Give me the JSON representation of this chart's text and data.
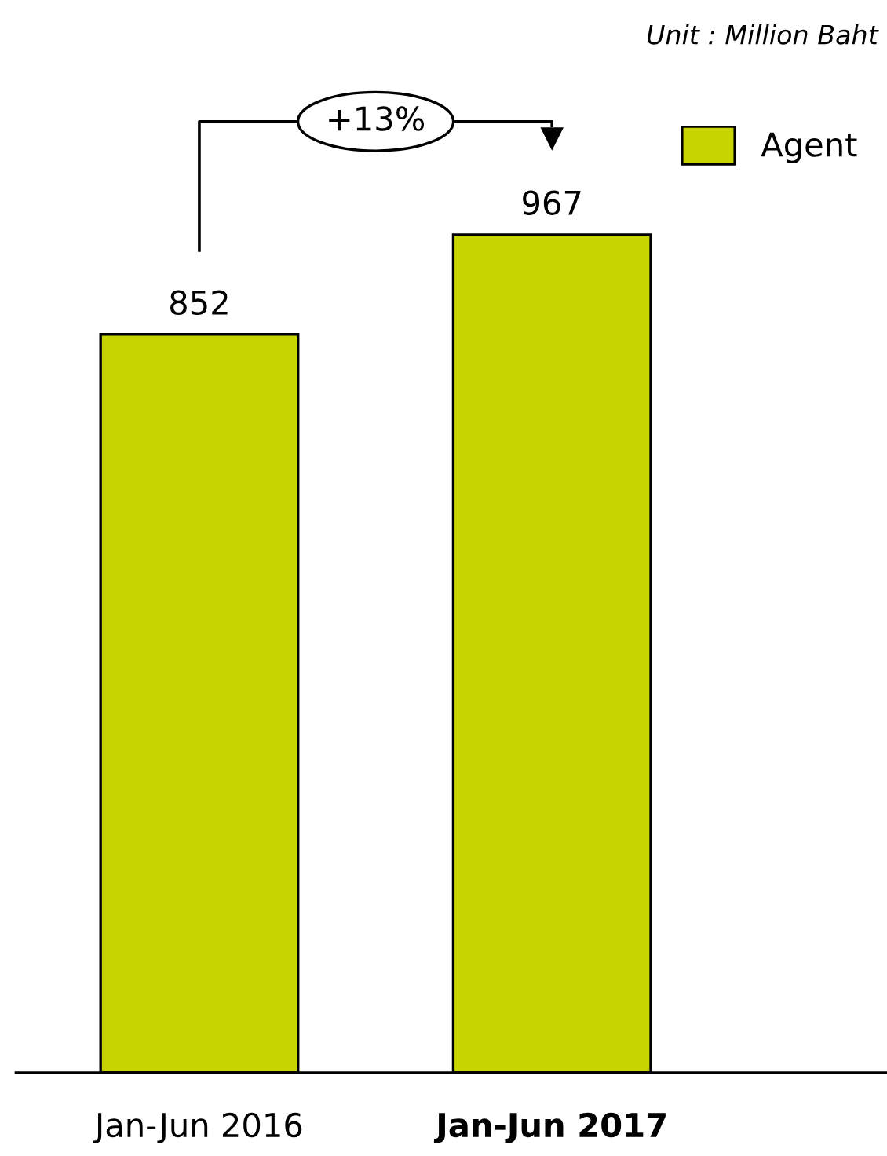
{
  "chart_data": {
    "type": "bar",
    "categories": [
      "Jan-Jun 2016",
      "Jan-Jun 2017"
    ],
    "series": [
      {
        "name": "Agent",
        "color": "#c8d400",
        "values": [
          852,
          967
        ]
      }
    ],
    "data_labels": true,
    "legend": "top right",
    "grid": false,
    "annotations": [
      "+13%",
      "Unit : Million Baht"
    ]
  }
}
